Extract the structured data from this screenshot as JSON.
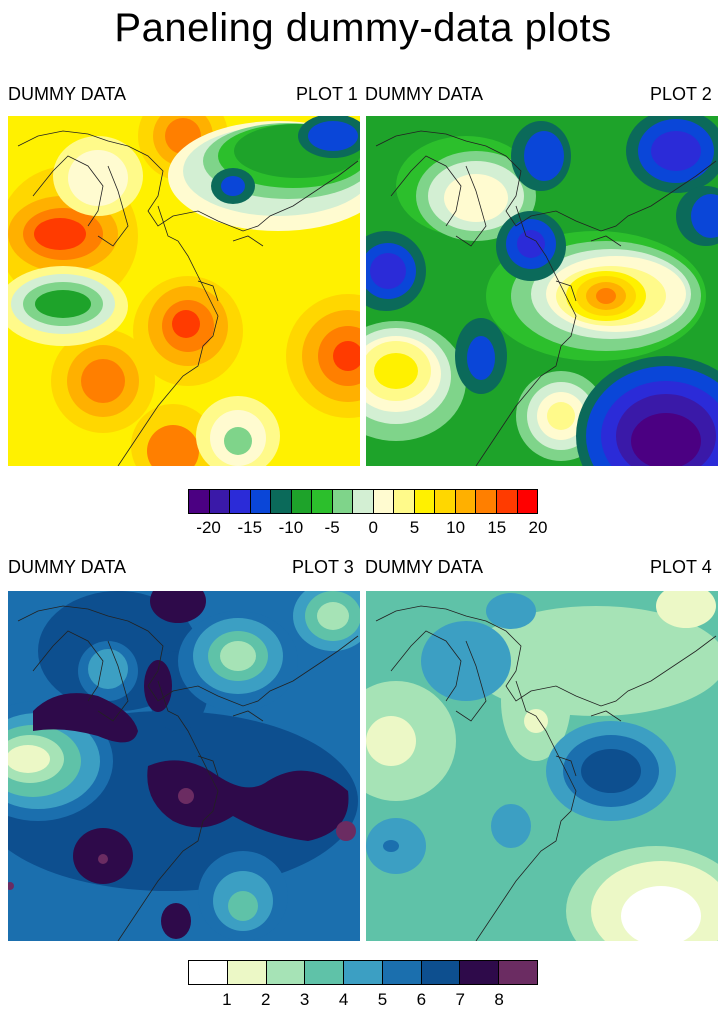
{
  "title": "Paneling dummy-data plots",
  "panels": [
    {
      "left_label": "DUMMY DATA",
      "right_label": "PLOT 1"
    },
    {
      "left_label": "DUMMY DATA",
      "right_label": "PLOT 2"
    },
    {
      "left_label": "DUMMY DATA",
      "right_label": "PLOT 3"
    },
    {
      "left_label": "DUMMY DATA",
      "right_label": "PLOT 4"
    }
  ],
  "colorbar_top": {
    "colors": [
      "#4b0082",
      "#3a19a8",
      "#2b2bd8",
      "#0a46d8",
      "#0b6a5a",
      "#1ea32a",
      "#2cbf2c",
      "#7fd48a",
      "#d3efd3",
      "#fffbd0",
      "#fffa8a",
      "#fff100",
      "#ffd700",
      "#ffb000",
      "#ff7f00",
      "#ff3b00",
      "#ff0000"
    ],
    "tick_labels": [
      "-20",
      "-15",
      "-10",
      "-5",
      "0",
      "5",
      "10",
      "15",
      "20"
    ]
  },
  "colorbar_bottom": {
    "colors": [
      "#ffffff",
      "#ecf8c6",
      "#a6e3b6",
      "#5fc2a8",
      "#3c9fc3",
      "#1b6fae",
      "#0d4f8f",
      "#2e0a4a",
      "#6b2c62"
    ],
    "tick_labels": [
      "1",
      "2",
      "3",
      "4",
      "5",
      "6",
      "7",
      "8"
    ]
  },
  "chart_data": [
    {
      "type": "heatmap",
      "title": "PLOT 1",
      "subtitle": "DUMMY DATA",
      "colorbar": "colorbar_top",
      "value_range": [
        -20,
        20
      ]
    },
    {
      "type": "heatmap",
      "title": "PLOT 2",
      "subtitle": "DUMMY DATA",
      "colorbar": "colorbar_top",
      "value_range": [
        -20,
        20
      ]
    },
    {
      "type": "heatmap",
      "title": "PLOT 3",
      "subtitle": "DUMMY DATA",
      "colorbar": "colorbar_bottom",
      "value_range": [
        1,
        8
      ]
    },
    {
      "type": "heatmap",
      "title": "PLOT 4",
      "subtitle": "DUMMY DATA",
      "colorbar": "colorbar_bottom",
      "value_range": [
        1,
        8
      ]
    }
  ]
}
